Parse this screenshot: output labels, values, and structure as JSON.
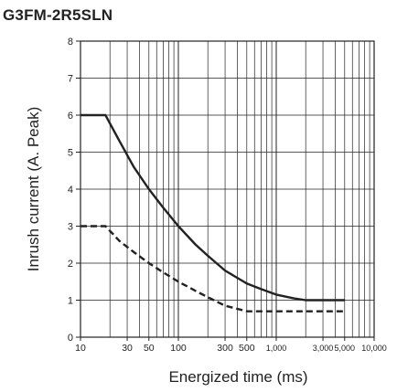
{
  "chart_data": {
    "type": "line",
    "title": "G3FM-2R5SLN",
    "xlabel": "Energized time (ms)",
    "ylabel": "Inrush current (A. Peak)",
    "x_scale": "log",
    "xlim": [
      10,
      10000
    ],
    "ylim": [
      0,
      8
    ],
    "x_major_ticks": [
      10,
      100,
      1000,
      10000
    ],
    "x_tick_labels": [
      {
        "value": 10,
        "label": "10"
      },
      {
        "value": 30,
        "label": "30"
      },
      {
        "value": 50,
        "label": "50"
      },
      {
        "value": 100,
        "label": "100"
      },
      {
        "value": 300,
        "label": "300"
      },
      {
        "value": 500,
        "label": "500"
      },
      {
        "value": 1000,
        "label": "1,000"
      },
      {
        "value": 3000,
        "label": "3,000"
      },
      {
        "value": 5000,
        "label": "5,000"
      },
      {
        "value": 10000,
        "label": "10,000"
      }
    ],
    "y_ticks": [
      0,
      1,
      2,
      3,
      4,
      5,
      6,
      7,
      8
    ],
    "y_tick_labels": [
      "0",
      "1",
      "2",
      "3",
      "4",
      "5",
      "6",
      "7",
      "8"
    ],
    "grid": true,
    "series": [
      {
        "style": "solid",
        "x": [
          10,
          18,
          25,
          35,
          50,
          70,
          100,
          150,
          200,
          300,
          500,
          700,
          1000,
          1500,
          2000,
          2500,
          3000,
          5000
        ],
        "y": [
          6,
          6,
          5.3,
          4.6,
          4.0,
          3.5,
          3.0,
          2.5,
          2.2,
          1.8,
          1.45,
          1.3,
          1.15,
          1.05,
          1.0,
          1.0,
          1.0,
          1.0
        ]
      },
      {
        "style": "dashed",
        "x": [
          10,
          18,
          25,
          35,
          50,
          70,
          100,
          150,
          200,
          300,
          500,
          5000
        ],
        "y": [
          3,
          3,
          2.6,
          2.3,
          2.0,
          1.75,
          1.5,
          1.25,
          1.08,
          0.85,
          0.7,
          0.7
        ]
      }
    ],
    "colors": {
      "axis": "#222222",
      "grid": "#222222",
      "line": "#222222"
    }
  }
}
